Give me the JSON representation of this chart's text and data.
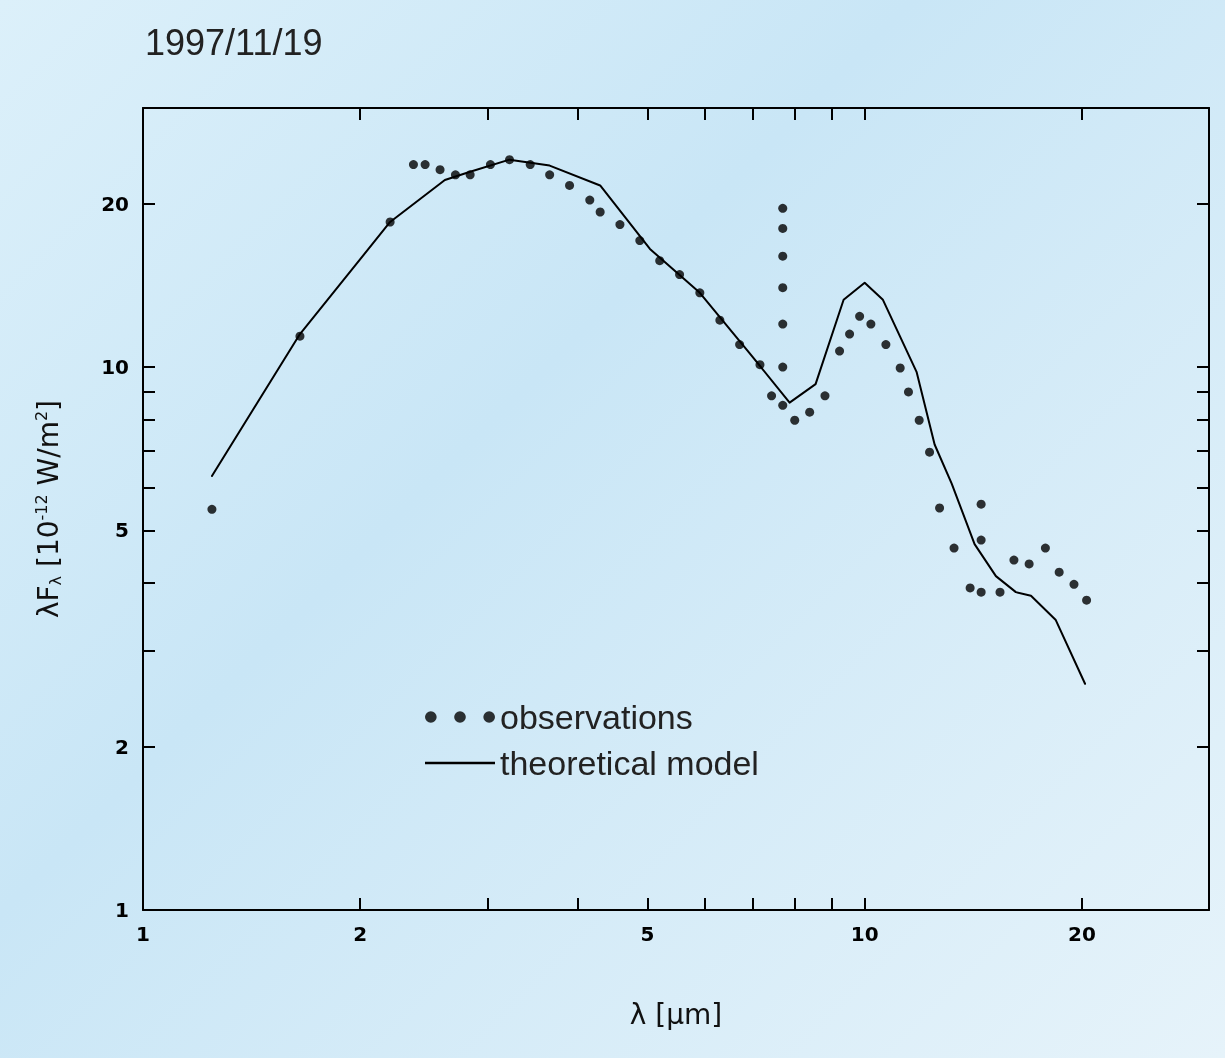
{
  "chart_data": {
    "type": "line",
    "title": "1997/11/19",
    "xlabel": "λ [μm]",
    "ylabel": "λF$_{λ}$ [10$^{-12}$ W/m$^{2}$]",
    "log": "xy",
    "xlim": [
      1,
      30
    ],
    "ylim": [
      1,
      30
    ],
    "xticks": [
      1,
      2,
      {
        "value": 3,
        "label": null
      },
      {
        "value": 4,
        "label": null
      },
      5,
      {
        "value": 6,
        "label": null
      },
      {
        "value": 7,
        "label": null
      },
      {
        "value": 8,
        "label": null
      },
      {
        "value": 9,
        "label": null
      },
      10,
      20,
      {
        "value": 30,
        "label": null
      }
    ],
    "yticks": [
      1,
      2,
      {
        "value": 3,
        "label": null
      },
      {
        "value": 4,
        "label": null
      },
      5,
      {
        "value": 6,
        "label": null
      },
      {
        "value": 7,
        "label": null
      },
      {
        "value": 8,
        "label": null
      },
      {
        "value": 9,
        "label": null
      },
      10,
      20,
      {
        "value": 30,
        "label": null
      }
    ],
    "grid": false,
    "legend": "bottom",
    "series": [
      {
        "name": "observations",
        "type": "scatter",
        "color": "#000000",
        "marker": "circle",
        "x": [
          1.246,
          1.65,
          2.2,
          2.37,
          2.46,
          2.58,
          2.71,
          2.84,
          3.03,
          3.22,
          3.44,
          3.66,
          3.9,
          4.16,
          4.3,
          4.58,
          4.88,
          5.2,
          5.54,
          5.91,
          6.3,
          6.71,
          7.16,
          7.43,
          7.7,
          7.7,
          7.7,
          7.7,
          7.7,
          7.7,
          7.7,
          8.0,
          8.39,
          8.81,
          9.23,
          9.53,
          9.84,
          10.2,
          10.7,
          11.2,
          11.5,
          11.9,
          12.3,
          12.7,
          13.3,
          14.0,
          14.5,
          14.5,
          14.5,
          15.4,
          16.1,
          16.9,
          17.8,
          18.6,
          19.5,
          20.3
        ],
        "values": [
          5.47,
          11.4,
          18.5,
          23.6,
          23.6,
          23.1,
          22.6,
          22.6,
          23.6,
          24.1,
          23.6,
          22.6,
          21.6,
          20.3,
          19.3,
          18.3,
          17.1,
          15.7,
          14.8,
          13.7,
          12.2,
          11.0,
          10.1,
          8.85,
          8.5,
          10,
          12,
          14,
          16,
          18,
          19.6,
          7.98,
          8.26,
          8.85,
          10.7,
          11.5,
          12.4,
          12.0,
          11.0,
          9.96,
          9.0,
          7.98,
          6.97,
          5.5,
          4.64,
          3.92,
          3.85,
          4.8,
          5.59,
          3.85,
          4.41,
          4.34,
          4.64,
          4.19,
          3.98,
          3.72
        ]
      },
      {
        "name": "theoretical model",
        "color": "#000000",
        "line_style": "solid",
        "marker": "none",
        "x": [
          1.246,
          1.65,
          2.2,
          2.62,
          2.84,
          3.22,
          3.66,
          4.3,
          5.04,
          5.91,
          6.93,
          7.87,
          8.55,
          9.35,
          10.0,
          10.6,
          11.8,
          12.5,
          13.2,
          14.2,
          15.2,
          16.2,
          17.0,
          18.4,
          20.2
        ],
        "values": [
          6.3,
          11.5,
          18.5,
          22.1,
          22.9,
          24.1,
          23.5,
          21.6,
          16.5,
          13.7,
          10.6,
          8.6,
          9.3,
          13.3,
          14.3,
          13.3,
          9.8,
          7.2,
          6.1,
          4.72,
          4.12,
          3.85,
          3.79,
          3.42,
          2.61
        ]
      }
    ]
  }
}
